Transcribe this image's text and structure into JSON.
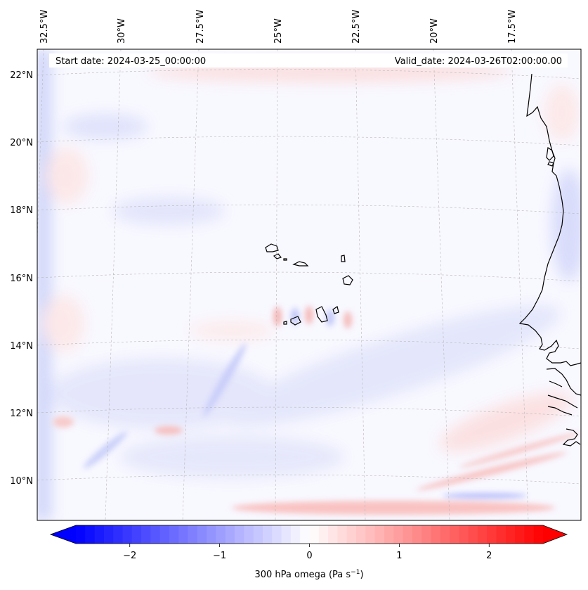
{
  "header": {
    "start_date": "Start date: 2024-03-25_00:00:00",
    "valid_date": "Valid_date: 2024-03-26T02:00:00.00"
  },
  "map": {
    "region": "Eastern tropical Atlantic / Cape Verde",
    "lon_labels": [
      "32.5°W",
      "30°W",
      "27.5°W",
      "25°W",
      "22.5°W",
      "20°W",
      "17.5°W"
    ],
    "lat_labels": [
      "22°N",
      "20°N",
      "18°N",
      "16°N",
      "14°N",
      "12°N",
      "10°N"
    ]
  },
  "colorbar": {
    "label_text": "300 hPa omega (Pa s",
    "label_sup": "−1",
    "label_close": ")",
    "ticks": [
      "−2",
      "−1",
      "0",
      "1",
      "2"
    ],
    "tick_values": [
      -2,
      -1,
      0,
      1,
      2
    ],
    "vmin": -2.6,
    "vmax": 2.6,
    "colormap": "bwr",
    "low_color": "#0000ff",
    "mid_color": "#ffffff",
    "high_color": "#ff0000"
  }
}
